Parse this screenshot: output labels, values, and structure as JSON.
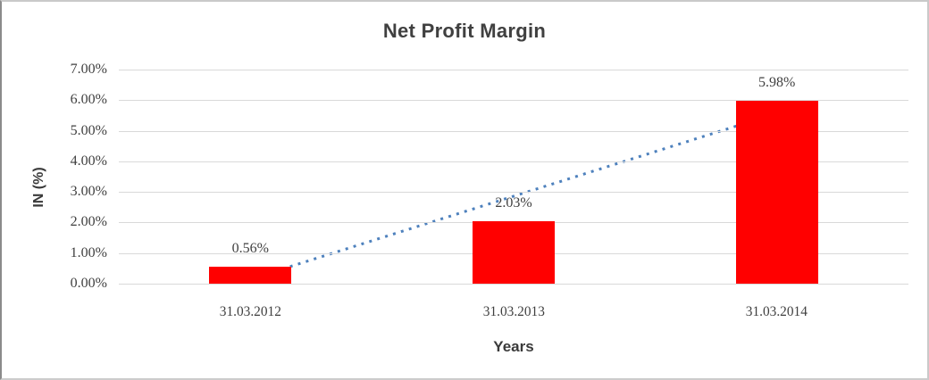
{
  "chart_data": {
    "type": "bar",
    "title": "Net Profit Margin",
    "xlabel": "Years",
    "ylabel": "IN (%)",
    "categories": [
      "31.03.2012",
      "31.03.2013",
      "31.03.2014"
    ],
    "values": [
      0.56,
      2.03,
      5.98
    ],
    "data_labels": [
      "0.56%",
      "2.03%",
      "5.98%"
    ],
    "ytick_labels": [
      "0.00%",
      "1.00%",
      "2.00%",
      "3.00%",
      "4.00%",
      "5.00%",
      "6.00%",
      "7.00%"
    ],
    "ytick_values": [
      0,
      1,
      2,
      3,
      4,
      5,
      6,
      7
    ],
    "ylim": [
      0,
      7
    ],
    "grid": "horizontal",
    "legend": "none",
    "bar_color": "#ff0000",
    "gridline_color": "#d9d9d9",
    "text_color": "#3f3f3f",
    "trendline": {
      "type": "linear",
      "style": "dotted",
      "color": "#4e81bd",
      "start_value": 0.15,
      "end_value": 5.57
    }
  }
}
